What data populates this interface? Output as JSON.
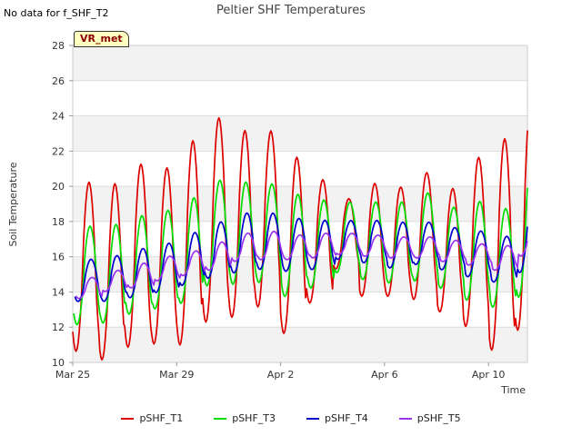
{
  "note": "No data for f_SHF_T2",
  "badge": "VR_met",
  "chart_data": {
    "type": "line",
    "title": "Peltier SHF Temperatures",
    "xlabel": "Time",
    "ylabel": "Soil Temperature",
    "ylim": [
      10,
      28
    ],
    "yticks": [
      10,
      12,
      14,
      16,
      18,
      20,
      22,
      24,
      26,
      28
    ],
    "xlim": [
      "2024-03-25",
      "2024-04-11.5"
    ],
    "xticks": [
      {
        "date": "2024-03-25",
        "label": "Mar 25"
      },
      {
        "date": "2024-03-29",
        "label": "Mar 29"
      },
      {
        "date": "2024-04-02",
        "label": "Apr 2"
      },
      {
        "date": "2024-04-06",
        "label": "Apr 6"
      },
      {
        "date": "2024-04-10",
        "label": "Apr 10"
      }
    ],
    "legend_position": "bottom",
    "series": [
      {
        "name": "pSHF_T1",
        "color": "#dd0000",
        "mean": [
          15.2,
          14.9,
          15.8,
          15.8,
          16.5,
          17.8,
          17.6,
          17.9,
          16.4,
          16.7,
          17.2,
          16.8,
          16.7,
          17.0,
          16.2,
          16.6,
          16.4,
          18.0
        ],
        "amp": [
          4.8,
          5.0,
          5.2,
          5.0,
          5.8,
          5.8,
          5.3,
          5.0,
          5.0,
          3.5,
          2.0,
          3.2,
          3.1,
          3.6,
          3.5,
          4.8,
          6.0,
          6.5
        ]
      },
      {
        "name": "pSHF_T3",
        "color": "#00dd00",
        "mean": [
          14.8,
          14.9,
          15.4,
          15.7,
          16.2,
          17.2,
          17.2,
          17.2,
          16.5,
          16.6,
          17.0,
          16.8,
          16.7,
          17.0,
          16.4,
          16.2,
          15.8,
          17.5
        ],
        "amp": [
          2.8,
          2.8,
          2.8,
          2.8,
          3.0,
          3.0,
          2.9,
          2.8,
          2.9,
          2.5,
          2.0,
          2.2,
          2.3,
          2.5,
          2.3,
          2.8,
          2.8,
          4.0
        ]
      },
      {
        "name": "pSHF_T4",
        "color": "#0000cc",
        "mean": [
          14.6,
          14.7,
          15.0,
          15.3,
          15.8,
          16.3,
          16.7,
          16.8,
          16.6,
          16.6,
          16.9,
          16.8,
          16.6,
          16.7,
          16.4,
          16.1,
          15.8,
          17.0
        ],
        "amp": [
          1.2,
          1.3,
          1.4,
          1.4,
          1.5,
          1.6,
          1.7,
          1.6,
          1.5,
          1.4,
          1.1,
          1.2,
          1.3,
          1.2,
          1.2,
          1.3,
          1.3,
          2.0
        ]
      },
      {
        "name": "pSHF_T5",
        "color": "#9933ee",
        "mean": [
          14.2,
          14.6,
          14.9,
          15.3,
          15.6,
          16.0,
          16.5,
          16.6,
          16.5,
          16.6,
          16.7,
          16.6,
          16.5,
          16.5,
          16.3,
          16.1,
          15.9,
          16.9
        ],
        "amp": [
          0.6,
          0.6,
          0.7,
          0.7,
          0.7,
          0.8,
          0.8,
          0.8,
          0.7,
          0.7,
          0.6,
          0.6,
          0.6,
          0.6,
          0.6,
          0.6,
          0.7,
          0.9
        ]
      }
    ]
  }
}
